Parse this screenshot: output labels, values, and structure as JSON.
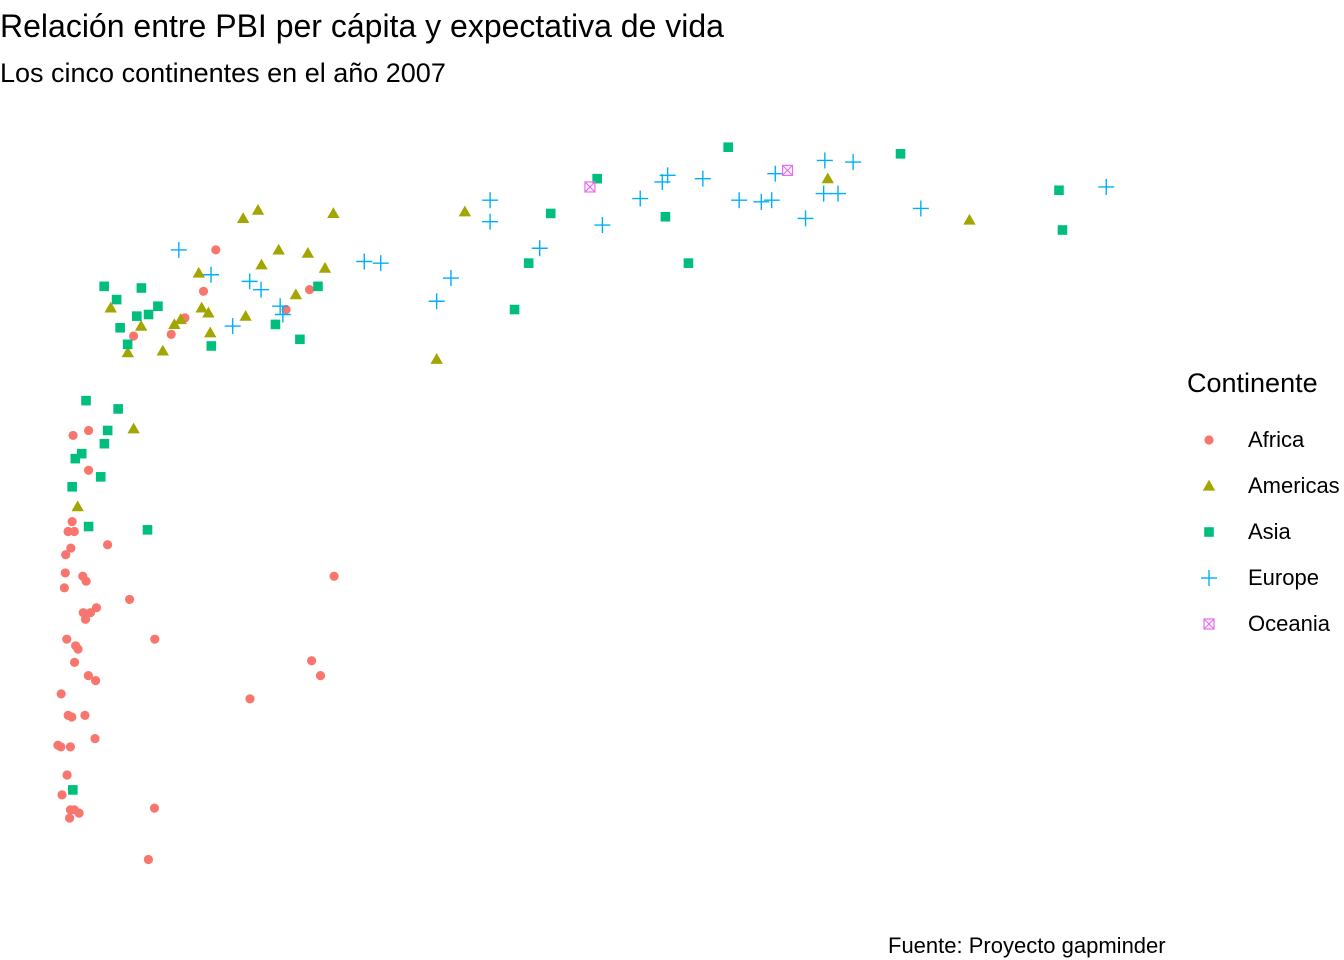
{
  "chart_data": {
    "type": "scatter",
    "title": "Relación entre PBI per cápita y expectativa de vida",
    "subtitle": "Los cinco continentes en el año 2007",
    "caption": "Fuente: Proyecto gapminder",
    "xlabel": "",
    "ylabel": "",
    "xlim": [
      0,
      50000
    ],
    "ylim": [
      38,
      84
    ],
    "grid": false,
    "legend": {
      "title": "Continente",
      "position": "right"
    },
    "series": [
      {
        "name": "Africa",
        "color": "#F8766D",
        "shape": "circle",
        "points": [
          [
            6223,
            72.3
          ],
          [
            4797,
            42.7
          ],
          [
            1441,
            56.7
          ],
          [
            12570,
            50.7
          ],
          [
            1217,
            52.3
          ],
          [
            430,
            49.6
          ],
          [
            2042,
            50.4
          ],
          [
            706,
            44.7
          ],
          [
            1704,
            50.7
          ],
          [
            986,
            65.2
          ],
          [
            277,
            46.5
          ],
          [
            3633,
            55.3
          ],
          [
            1544,
            48.3
          ],
          [
            2082,
            54.8
          ],
          [
            5581,
            71.3
          ],
          [
            12154,
            51.6
          ],
          [
            641,
            58.0
          ],
          [
            691,
            52.9
          ],
          [
            13206,
            56.7
          ],
          [
            753,
            59.4
          ],
          [
            943,
            60.0
          ],
          [
            579,
            56.0
          ],
          [
            1463,
            54.5
          ],
          [
            1569,
            54.1
          ],
          [
            1042,
            42.6
          ],
          [
            415,
            46.4
          ],
          [
            12057,
            74.0
          ],
          [
            1045,
            59.4
          ],
          [
            759,
            48.3
          ],
          [
            1803,
            54.5
          ],
          [
            10957,
            72.8
          ],
          [
            3820,
            71.2
          ],
          [
            824,
            42.1
          ],
          [
            4811,
            52.9
          ],
          [
            620,
            56.9
          ],
          [
            2014,
            46.9
          ],
          [
            7670,
            76.4
          ],
          [
            1713,
            65.5
          ],
          [
            863,
            46.4
          ],
          [
            1598,
            56.4
          ],
          [
            1712,
            63.1
          ],
          [
            862,
            42.6
          ],
          [
            926,
            48.2
          ],
          [
            9270,
            49.3
          ],
          [
            2602,
            58.6
          ],
          [
            4513,
            39.6
          ],
          [
            1107,
            52.5
          ],
          [
            882,
            58.4
          ],
          [
            7093,
            73.9
          ],
          [
            1056,
            51.5
          ],
          [
            1271,
            42.4
          ],
          [
            470,
            43.5
          ]
        ]
      },
      {
        "name": "Americas",
        "color": "#A3A500",
        "shape": "triangle",
        "points": [
          [
            12779,
            75.3
          ],
          [
            3822,
            65.6
          ],
          [
            9066,
            72.4
          ],
          [
            36319,
            80.7
          ],
          [
            13172,
            78.6
          ],
          [
            7007,
            72.9
          ],
          [
            9645,
            78.8
          ],
          [
            8948,
            78.3
          ],
          [
            6025,
            72.2
          ],
          [
            6873,
            75.0
          ],
          [
            5728,
            71.9
          ],
          [
            5186,
            70.3
          ],
          [
            1202,
            60.9
          ],
          [
            3548,
            70.2
          ],
          [
            7321,
            72.6
          ],
          [
            11978,
            76.2
          ],
          [
            2749,
            72.9
          ],
          [
            9809,
            75.5
          ],
          [
            4173,
            71.8
          ],
          [
            7408,
            71.4
          ],
          [
            19329,
            78.7
          ],
          [
            18009,
            69.8
          ],
          [
            42952,
            78.2
          ],
          [
            10611,
            76.4
          ],
          [
            11416,
            73.7
          ]
        ]
      },
      {
        "name": "Asia",
        "color": "#00BF7D",
        "shape": "square",
        "points": [
          [
            975,
            43.8
          ],
          [
            29796,
            75.6
          ],
          [
            1391,
            64.1
          ],
          [
            1713,
            59.7
          ],
          [
            4959,
            73.0
          ],
          [
            39725,
            82.2
          ],
          [
            2452,
            64.7
          ],
          [
            3541,
            70.7
          ],
          [
            11606,
            71.0
          ],
          [
            4471,
            59.5
          ],
          [
            25523,
            80.7
          ],
          [
            31656,
            82.6
          ],
          [
            4519,
            72.5
          ],
          [
            1593,
            67.3
          ],
          [
            23348,
            78.6
          ],
          [
            47307,
            77.6
          ],
          [
            10461,
            71.9
          ],
          [
            12452,
            74.2
          ],
          [
            3096,
            66.8
          ],
          [
            944,
            62.1
          ],
          [
            1091,
            63.8
          ],
          [
            22316,
            75.6
          ],
          [
            2606,
            65.5
          ],
          [
            3190,
            71.7
          ],
          [
            21655,
            72.8
          ],
          [
            47143,
            80.0
          ],
          [
            3970,
            72.4
          ],
          [
            4185,
            74.1
          ],
          [
            28718,
            78.4
          ],
          [
            7458,
            70.6
          ],
          [
            2442,
            74.2
          ],
          [
            3025,
            73.4
          ],
          [
            2281,
            62.7
          ]
        ]
      },
      {
        "name": "Europe",
        "color": "#00B0F6",
        "shape": "plus",
        "points": [
          [
            5937,
            76.4
          ],
          [
            36126,
            79.8
          ],
          [
            33693,
            79.4
          ],
          [
            7446,
            74.9
          ],
          [
            10681,
            73.0
          ],
          [
            14619,
            75.7
          ],
          [
            22833,
            76.5
          ],
          [
            35278,
            78.3
          ],
          [
            33207,
            79.3
          ],
          [
            30470,
            80.7
          ],
          [
            32170,
            79.4
          ],
          [
            27538,
            79.5
          ],
          [
            18009,
            73.3
          ],
          [
            36181,
            81.8
          ],
          [
            40676,
            78.9
          ],
          [
            28570,
            80.5
          ],
          [
            9254,
            74.5
          ],
          [
            36798,
            79.8
          ],
          [
            49357,
            80.2
          ],
          [
            20510,
            79.4
          ],
          [
            15390,
            75.6
          ],
          [
            20510,
            78.1
          ],
          [
            10808,
            72.5
          ],
          [
            9787,
            74.0
          ],
          [
            18678,
            74.7
          ],
          [
            25768,
            77.9
          ],
          [
            28821,
            80.9
          ],
          [
            33860,
            81.0
          ],
          [
            37506,
            81.7
          ],
          [
            8458,
            71.8
          ]
        ]
      },
      {
        "name": "Oceania",
        "color": "#E76BF3",
        "shape": "square-cross",
        "points": [
          [
            34435,
            81.2
          ],
          [
            25185,
            80.2
          ]
        ]
      }
    ]
  }
}
